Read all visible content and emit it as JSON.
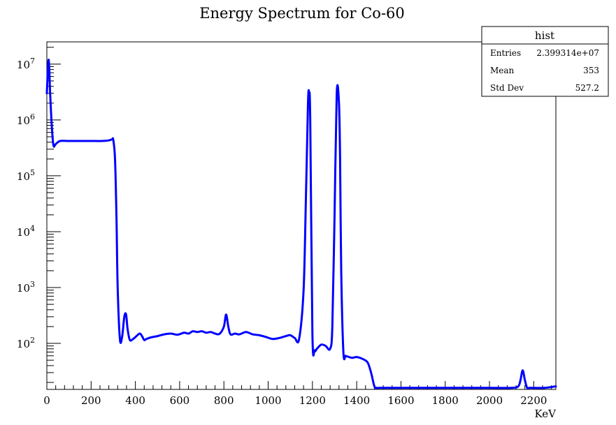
{
  "chart_data": {
    "type": "line",
    "title": "Energy Spectrum for Co-60",
    "xlabel": "KeV",
    "ylabel": "",
    "xlim": [
      0,
      2300
    ],
    "ylim": [
      15,
      25000000
    ],
    "yscale": "log",
    "grid": false,
    "x_ticks": [
      0,
      200,
      400,
      600,
      800,
      1000,
      1200,
      1400,
      1600,
      1800,
      2000,
      2200
    ],
    "y_ticks": [
      {
        "value": 100,
        "exp": "2"
      },
      {
        "value": 1000,
        "exp": "3"
      },
      {
        "value": 10000,
        "exp": "4"
      },
      {
        "value": 100000,
        "exp": "5"
      },
      {
        "value": 1000000,
        "exp": "6"
      },
      {
        "value": 10000000,
        "exp": "7"
      }
    ],
    "series": [
      {
        "color": "#0000ff",
        "x": [
          0,
          8,
          15,
          22,
          30,
          40,
          60,
          100,
          150,
          200,
          250,
          280,
          295,
          300,
          308,
          315,
          320,
          330,
          340,
          350,
          358,
          365,
          375,
          390,
          405,
          420,
          430,
          440,
          450,
          470,
          500,
          530,
          560,
          590,
          620,
          640,
          660,
          680,
          700,
          720,
          740,
          760,
          780,
          800,
          810,
          820,
          830,
          850,
          870,
          900,
          930,
          960,
          990,
          1020,
          1050,
          1080,
          1100,
          1120,
          1140,
          1160,
          1170,
          1180,
          1185,
          1190,
          1200,
          1210,
          1220,
          1240,
          1260,
          1280,
          1290,
          1300,
          1310,
          1320,
          1325,
          1330,
          1340,
          1350,
          1360,
          1380,
          1400,
          1430,
          1450,
          1465,
          1480,
          1490,
          1500,
          1510,
          1520,
          1550,
          1600,
          1700,
          1800,
          1900,
          2000,
          2100,
          2130,
          2140,
          2150,
          2160,
          2170,
          2180,
          2200,
          2250,
          2300
        ],
        "y": [
          3000000,
          12000000,
          3000000,
          800000,
          350000,
          370000,
          420000,
          420000,
          420000,
          420000,
          420000,
          430000,
          450000,
          440000,
          200000,
          15000,
          1000,
          120,
          130,
          300,
          330,
          180,
          115,
          120,
          135,
          150,
          135,
          115,
          120,
          128,
          135,
          145,
          150,
          143,
          155,
          150,
          165,
          160,
          165,
          155,
          160,
          150,
          148,
          200,
          330,
          200,
          145,
          150,
          145,
          160,
          145,
          140,
          130,
          120,
          125,
          135,
          140,
          125,
          120,
          900,
          30000,
          2000000,
          3000000,
          1000000,
          150,
          75,
          80,
          95,
          90,
          80,
          200,
          20000,
          3000000,
          2000000,
          200000,
          2000,
          70,
          60,
          58,
          55,
          57,
          52,
          45,
          30,
          17,
          16,
          16,
          16,
          16,
          16,
          16,
          16,
          16,
          16,
          16,
          16,
          17,
          22,
          33,
          22,
          16,
          16,
          16,
          16,
          17
        ]
      }
    ]
  },
  "stats_box": {
    "title": "hist",
    "rows": [
      {
        "label": "Entries",
        "value": "2.399314e+07"
      },
      {
        "label": "Mean",
        "value": "353"
      },
      {
        "label": "Std Dev",
        "value": "527.2"
      }
    ]
  }
}
